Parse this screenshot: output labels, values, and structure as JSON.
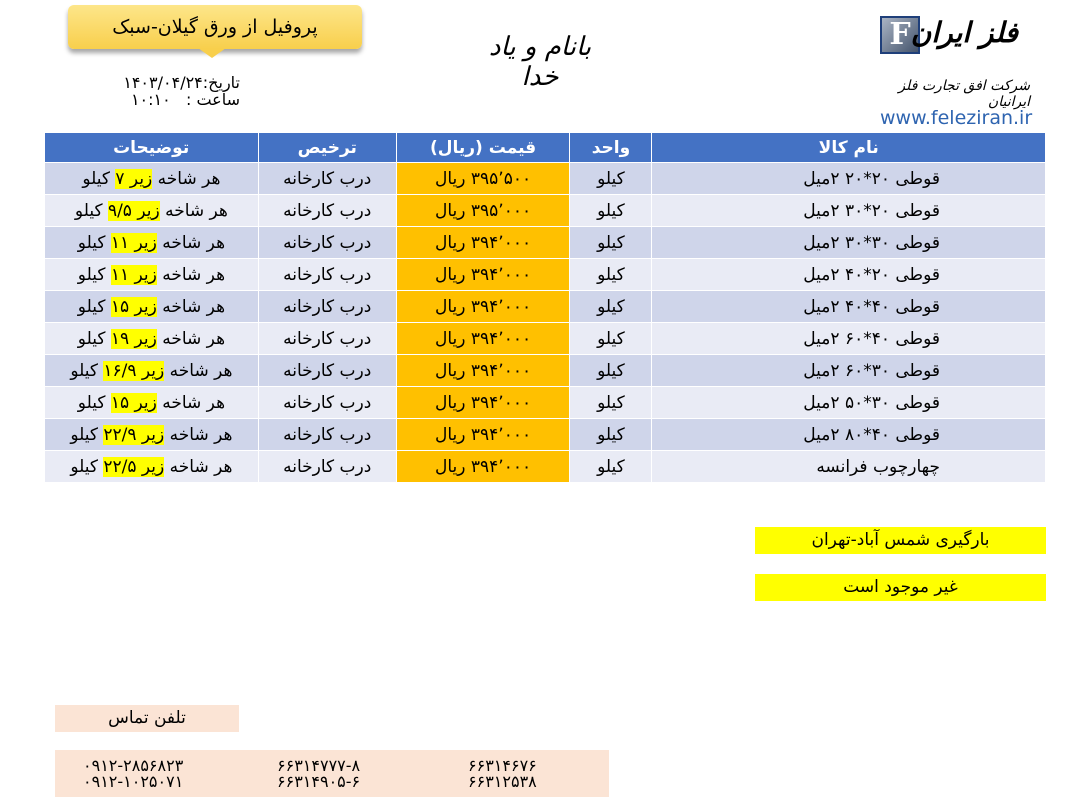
{
  "header": {
    "title": "پروفیل از ورق گیلان-سبک",
    "date": "تاریخ:۱۴۰۳/۰۴/۲۴",
    "time": "ساعت :   ۱۰:۱۰",
    "invocation": "بانام و یاد خدا"
  },
  "logo": {
    "name": "فلز ایران",
    "letter": "F",
    "company": "شرکت افق تجارت فلز ایرانیان",
    "url": "www.feleziran.ir"
  },
  "table": {
    "headers": [
      "نام کالا",
      "واحد",
      "قیمت (ریال)",
      "ترخیص",
      "توضیحات"
    ],
    "rows": [
      {
        "name": "قوطی ۲۰*۲۰ ۲میل",
        "unit": "کیلو",
        "price": "۳۹۵٬۵۰۰ ریال",
        "delivery": "درب کارخانه",
        "desc_pre": "هر شاخه",
        "desc_hl": "زیر ۷",
        "desc_post": "کیلو"
      },
      {
        "name": "قوطی ۲۰*۳۰ ۲میل",
        "unit": "کیلو",
        "price": "۳۹۵٬۰۰۰ ریال",
        "delivery": "درب کارخانه",
        "desc_pre": "هر شاخه",
        "desc_hl": "زیر ۹/۵",
        "desc_post": "کیلو"
      },
      {
        "name": "قوطی ۳۰*۳۰ ۲میل",
        "unit": "کیلو",
        "price": "۳۹۴٬۰۰۰ ریال",
        "delivery": "درب کارخانه",
        "desc_pre": "هر شاخه",
        "desc_hl": "زیر ۱۱",
        "desc_post": "کیلو"
      },
      {
        "name": "قوطی ۲۰*۴۰ ۲میل",
        "unit": "کیلو",
        "price": "۳۹۴٬۰۰۰ ریال",
        "delivery": "درب کارخانه",
        "desc_pre": "هر شاخه",
        "desc_hl": "زیر ۱۱",
        "desc_post": "کیلو"
      },
      {
        "name": "قوطی ۴۰*۴۰ ۲میل",
        "unit": "کیلو",
        "price": "۳۹۴٬۰۰۰ ریال",
        "delivery": "درب کارخانه",
        "desc_pre": "هر شاخه",
        "desc_hl": "زیر ۱۵",
        "desc_post": "کیلو"
      },
      {
        "name": "قوطی ۴۰*۶۰ ۲میل",
        "unit": "کیلو",
        "price": "۳۹۴٬۰۰۰ ریال",
        "delivery": "درب کارخانه",
        "desc_pre": "هر شاخه",
        "desc_hl": "زیر ۱۹",
        "desc_post": "کیلو"
      },
      {
        "name": "قوطی ۳۰*۶۰ ۲میل",
        "unit": "کیلو",
        "price": "۳۹۴٬۰۰۰ ریال",
        "delivery": "درب کارخانه",
        "desc_pre": "هر شاخه",
        "desc_hl": "زیر ۱۶/۹",
        "desc_post": "کیلو"
      },
      {
        "name": "قوطی ۳۰*۵۰ ۲میل",
        "unit": "کیلو",
        "price": "۳۹۴٬۰۰۰ ریال",
        "delivery": "درب کارخانه",
        "desc_pre": "هر شاخه",
        "desc_hl": "زیر ۱۵",
        "desc_post": "کیلو"
      },
      {
        "name": "قوطی ۴۰*۸۰ ۲میل",
        "unit": "کیلو",
        "price": "۳۹۴٬۰۰۰ ریال",
        "delivery": "درب کارخانه",
        "desc_pre": "هر شاخه",
        "desc_hl": "زیر ۲۲/۹",
        "desc_post": "کیلو"
      },
      {
        "name": "چهارچوب فرانسه",
        "unit": "کیلو",
        "price": "۳۹۴٬۰۰۰ ریال",
        "delivery": "درب کارخانه",
        "desc_pre": "هر شاخه",
        "desc_hl": "زیر ۲۲/۵",
        "desc_post": "کیلو"
      }
    ]
  },
  "notes": {
    "loading": "بارگیری شمس آباد-تهران",
    "availability": "غیر موجود است"
  },
  "contact": {
    "label": "تلفن تماس",
    "phones": [
      [
        "۰۹۱۲-۲۸۵۶۸۲۳",
        "۶۶۳۱۴۷۷۷-۸",
        "۶۶۳۱۴۶۷۶"
      ],
      [
        "۰۹۱۲-۱۰۲۵۰۷۱",
        "۶۶۳۱۴۹۰۵-۶",
        "۶۶۳۱۲۵۳۸"
      ]
    ]
  },
  "colors": {
    "header": "#4472c4",
    "price": "#ffc000",
    "highlight": "#ffff00",
    "row_dark": "#cfd5ea",
    "row_light": "#e9ebf5",
    "contact_bg": "#fbe4d5"
  }
}
